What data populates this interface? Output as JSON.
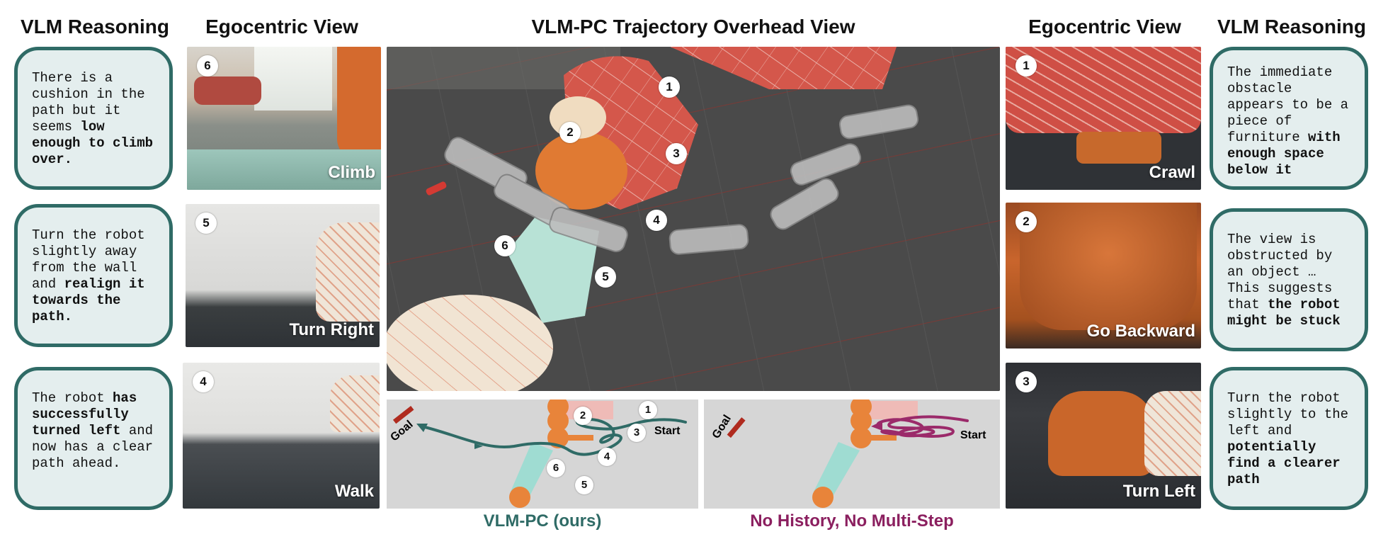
{
  "headers": {
    "left_reasoning": "VLM Reasoning",
    "left_view": "Egocentric View",
    "center": "VLM-PC Trajectory Overhead View",
    "right_view": "Egocentric View",
    "right_reasoning": "VLM Reasoning"
  },
  "left_bubbles": [
    {
      "parts": [
        {
          "t": "There is a cushion in the path but it seems ",
          "b": false
        },
        {
          "t": "low enough to climb over.",
          "b": true
        }
      ]
    },
    {
      "parts": [
        {
          "t": "Turn the robot slightly away from the wall and ",
          "b": false
        },
        {
          "t": "realign it towards the path.",
          "b": true
        }
      ]
    },
    {
      "parts": [
        {
          "t": "The robot ",
          "b": false
        },
        {
          "t": "has successfully turned left",
          "b": true
        },
        {
          "t": " and now has a clear path ahead.",
          "b": false
        }
      ]
    }
  ],
  "right_bubbles": [
    {
      "parts": [
        {
          "t": "The immediate obstacle appears to be a piece of furniture ",
          "b": false
        },
        {
          "t": "with enough space below it",
          "b": true
        }
      ]
    },
    {
      "parts": [
        {
          "t": "The view is obstructed by an object … This suggests that ",
          "b": false
        },
        {
          "t": "the robot might be stuck",
          "b": true
        }
      ]
    },
    {
      "parts": [
        {
          "t": "Turn the robot slightly to the left and ",
          "b": false
        },
        {
          "t": "potentially find a clearer path",
          "b": true
        }
      ]
    }
  ],
  "left_views": [
    {
      "num": "6",
      "action": "Climb"
    },
    {
      "num": "5",
      "action": "Turn Right"
    },
    {
      "num": "4",
      "action": "Walk"
    }
  ],
  "right_views": [
    {
      "num": "1",
      "action": "Crawl"
    },
    {
      "num": "2",
      "action": "Go Backward"
    },
    {
      "num": "3",
      "action": "Turn Left"
    }
  ],
  "overhead_markers": [
    "1",
    "2",
    "3",
    "4",
    "5",
    "6"
  ],
  "maps": [
    {
      "caption": "VLM-PC (ours)",
      "goal": "Goal",
      "start": "Start",
      "markers": [
        "1",
        "2",
        "3",
        "4",
        "5",
        "6"
      ],
      "caption_color": "#2f6b66",
      "path_color": "#2f6b66"
    },
    {
      "caption": "No History, No Multi-Step",
      "goal": "Goal",
      "start": "Start",
      "caption_color": "#8b1f5f",
      "path_color": "#9b2a6a"
    }
  ],
  "colors": {
    "teal": "#2f6b66",
    "bubble_fill": "#e4eeee",
    "orange": "#e8843a",
    "mint": "#a8ded4",
    "magenta": "#9b2a6a",
    "goal_red": "#b02b1f"
  }
}
